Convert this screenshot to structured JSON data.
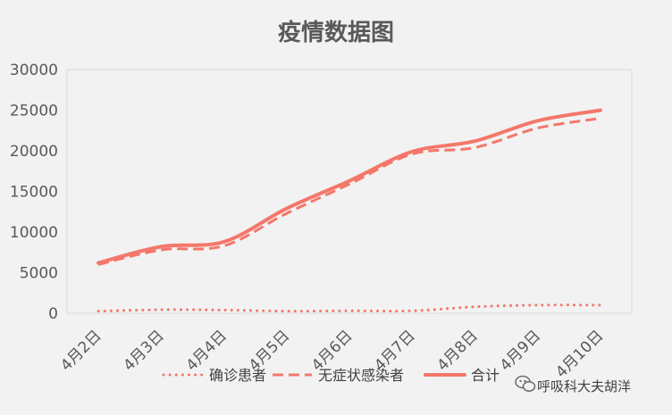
{
  "chart_data": {
    "type": "line",
    "title": "疫情数据图",
    "xlabel": "",
    "ylabel": "",
    "categories": [
      "4月2日",
      "4月3日",
      "4月4日",
      "4月5日",
      "4月6日",
      "4月7日",
      "4月8日",
      "4月9日",
      "4月10日"
    ],
    "ylim": [
      0,
      30000
    ],
    "yticks": [
      0,
      5000,
      10000,
      15000,
      20000,
      25000,
      30000
    ],
    "grid": false,
    "legend_position": "bottom",
    "series": [
      {
        "name": "确诊患者",
        "style": "dotted",
        "color": "#f4776a",
        "values": [
          260,
          440,
          400,
          260,
          300,
          300,
          800,
          1000,
          1000
        ]
      },
      {
        "name": "无症状感染者",
        "style": "dashed",
        "color": "#f4776a",
        "values": [
          6000,
          7800,
          8300,
          12300,
          15900,
          19600,
          20400,
          22800,
          24000
        ]
      },
      {
        "name": "合计",
        "style": "solid",
        "color": "#f4776a",
        "values": [
          6200,
          8200,
          8800,
          12900,
          16300,
          19900,
          21200,
          23700,
          25000
        ]
      }
    ]
  },
  "watermark": {
    "text": "呼吸科大夫胡洋",
    "icon": "wechat-icon"
  }
}
